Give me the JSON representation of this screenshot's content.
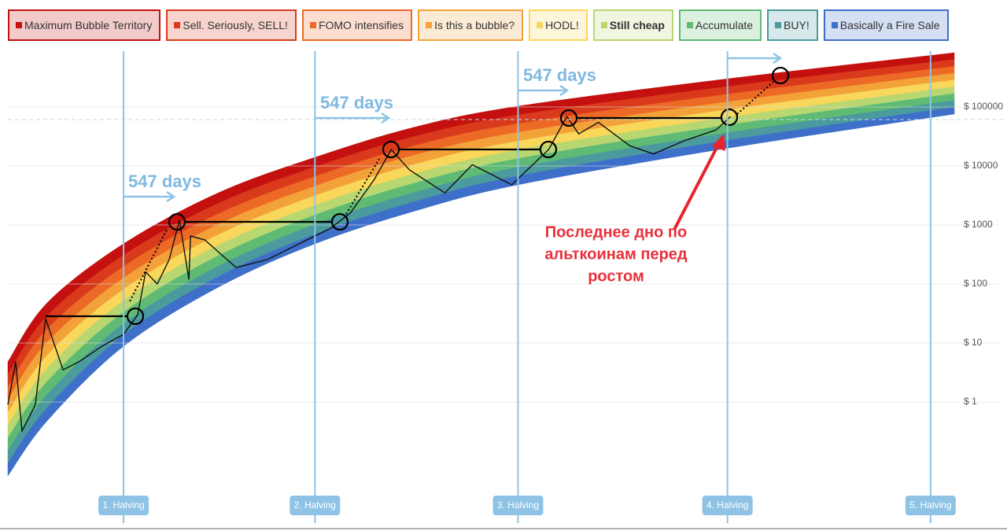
{
  "chart_data": {
    "type": "line",
    "log_scale": true,
    "grid": true,
    "legend": [
      {
        "name": "Maximum Bubble Territory",
        "color": "#c4100f"
      },
      {
        "name": "Sell. Seriously, SELL!",
        "color": "#d93a1c"
      },
      {
        "name": "FOMO intensifies",
        "color": "#ec6a25"
      },
      {
        "name": "Is this a bubble?",
        "color": "#f3a23a"
      },
      {
        "name": "HODL!",
        "color": "#f9d75a"
      },
      {
        "name": "Still cheap",
        "color": "#b9d770"
      },
      {
        "name": "Accumulate",
        "color": "#5fbb74"
      },
      {
        "name": "BUY!",
        "color": "#4a9a9e"
      },
      {
        "name": "Basically a Fire Sale",
        "color": "#3e6fc9"
      }
    ],
    "rainbow": {
      "x": [
        0,
        262,
        770,
        1400,
        2044,
        2700,
        3396,
        4790,
        6300
      ],
      "lower": [
        0.056,
        0.48,
        8.8,
        88,
        480,
        1700,
        4800,
        20000,
        76000
      ],
      "upper": [
        4.8,
        48,
        480,
        3500,
        14000,
        45000,
        103000,
        300000,
        830000
      ]
    },
    "series": [
      {
        "color": "#111111",
        "x": [
          0,
          52,
          94,
          183,
          251,
          367,
          472,
          629,
          770,
          864,
          917,
          995,
          1074,
          1142,
          1205,
          1216,
          1310,
          1520,
          1729,
          1939,
          2149,
          2280,
          2437,
          2552,
          2673,
          2909,
          3092,
          3354,
          3600,
          3721,
          3800,
          3931,
          4140,
          4297,
          4507,
          4716,
          4810
        ],
        "values": [
          0.9,
          4.8,
          0.32,
          0.9,
          26,
          3.5,
          4.8,
          8.9,
          14,
          30,
          160,
          100,
          260,
          1200,
          120,
          650,
          560,
          190,
          260,
          480,
          880,
          1600,
          5800,
          19000,
          8600,
          3500,
          10500,
          4800,
          19000,
          69000,
          35000,
          55000,
          22000,
          16000,
          27000,
          41000,
          69000
        ]
      }
    ],
    "halvings": [
      {
        "label": "1. Halving",
        "x": 770
      },
      {
        "label": "2. Halving",
        "x": 2044
      },
      {
        "label": "3. Halving",
        "x": 3396
      },
      {
        "label": "4. Halving",
        "x": 4790
      },
      {
        "label": "5. Halving",
        "x": 6142
      }
    ],
    "xlim": [
      0,
      6300
    ],
    "ylim": [
      0.01,
      1000000
    ],
    "yticks": [
      {
        "value": 1,
        "label": "$ 1"
      },
      {
        "value": 10,
        "label": "$ 10"
      },
      {
        "value": 100,
        "label": "$ 100"
      },
      {
        "value": 1000,
        "label": "$ 1000"
      },
      {
        "value": 10000,
        "label": "$ 10000"
      },
      {
        "value": 100000,
        "label": "$ 100000"
      }
    ],
    "annotations": [
      "547 days",
      "547 days",
      "547 days"
    ],
    "note": [
      "Последнее дно по",
      "альткоинам перед",
      "ростом"
    ]
  }
}
